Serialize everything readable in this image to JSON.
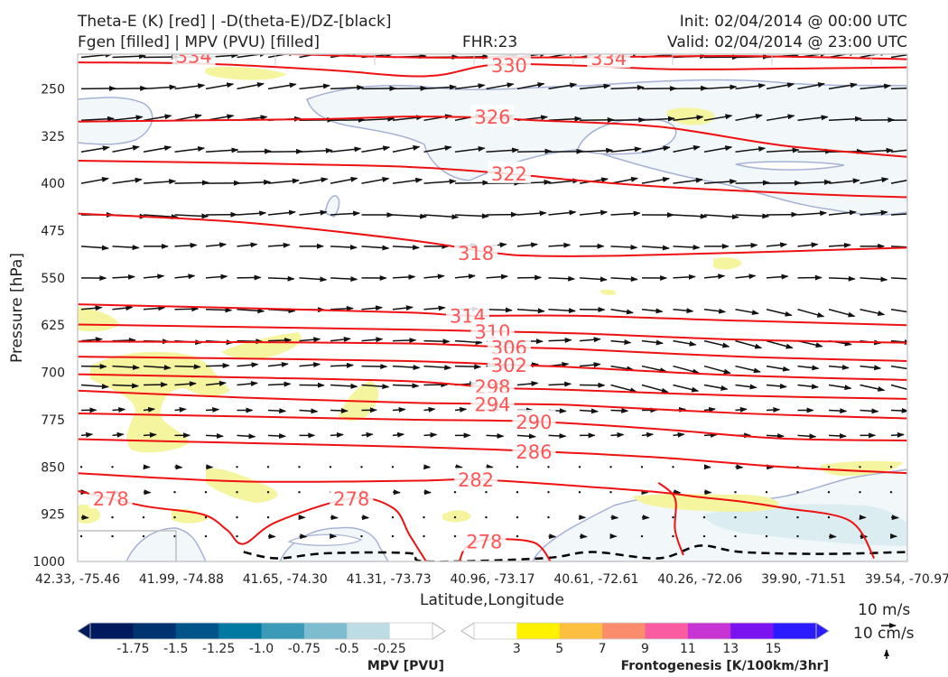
{
  "header": {
    "line1_left": "Theta-E (K) [red] | -D(theta-E)/DZ-[black]",
    "line2_left": "Fgen [filled] | MPV (PVU) [filled]",
    "fhr": "FHR:23",
    "init": "Init: 02/04/2014 @ 00:00 UTC",
    "valid": "Valid: 02/04/2014 @ 23:00 UTC"
  },
  "colors": {
    "theta_e": "#ee1111",
    "theta_e_label": "#ff5555",
    "mpv_light": "#f2f8f9",
    "mpv_edge": "#a6b1d6",
    "fgen_3": "#f5f5a0",
    "black_contour": "#000000"
  },
  "chart_data": {
    "type": "cross-section",
    "xlabel": "Latitude,Longitude",
    "ylabel": "Pressure [hPa]",
    "x_ticks": [
      "42.33, -75.46",
      "41.99, -74.88",
      "41.65, -74.30",
      "41.31, -73.73",
      "40.96, -73.17",
      "40.61, -72.61",
      "40.26, -72.06",
      "39.90, -71.51",
      "39.54, -70.97"
    ],
    "y_ticks": [
      250,
      325,
      400,
      475,
      550,
      625,
      700,
      775,
      850,
      925,
      1000
    ],
    "ylim": [
      1000,
      195
    ],
    "theta_e_contours": [
      {
        "level": 334,
        "points": [
          [
            0,
            190
          ],
          [
            20,
            193
          ],
          [
            40,
            200
          ],
          [
            60,
            200
          ],
          [
            80,
            198
          ],
          [
            100,
            203
          ]
        ],
        "label_at": [
          [
            14,
            197
          ],
          [
            64,
            201
          ]
        ]
      },
      {
        "level": 330,
        "points": [
          [
            0,
            208
          ],
          [
            15,
            210
          ],
          [
            30,
            220
          ],
          [
            42,
            230
          ],
          [
            50,
            212
          ],
          [
            60,
            213
          ],
          [
            72,
            219
          ],
          [
            85,
            218
          ],
          [
            100,
            216
          ]
        ],
        "label_at": [
          [
            52,
            212
          ]
        ]
      },
      {
        "level": 326,
        "points": [
          [
            0,
            302
          ],
          [
            15,
            300
          ],
          [
            30,
            298
          ],
          [
            40,
            294
          ],
          [
            50,
            296
          ],
          [
            55,
            300
          ],
          [
            70,
            310
          ],
          [
            85,
            340
          ],
          [
            100,
            358
          ]
        ],
        "label_at": [
          [
            50,
            294
          ]
        ]
      },
      {
        "level": 322,
        "points": [
          [
            0,
            364
          ],
          [
            20,
            368
          ],
          [
            40,
            374
          ],
          [
            52,
            385
          ],
          [
            60,
            395
          ],
          [
            70,
            405
          ],
          [
            80,
            412
          ],
          [
            90,
            418
          ],
          [
            100,
            422
          ]
        ],
        "label_at": [
          [
            52,
            384
          ]
        ]
      },
      {
        "level": 318,
        "points": [
          [
            0,
            448
          ],
          [
            20,
            462
          ],
          [
            40,
            490
          ],
          [
            50,
            510
          ],
          [
            55,
            515
          ],
          [
            65,
            515
          ],
          [
            80,
            510
          ],
          [
            100,
            502
          ]
        ],
        "label_at": [
          [
            48,
            510
          ]
        ]
      },
      {
        "level": 314,
        "points": [
          [
            0,
            592
          ],
          [
            20,
            598
          ],
          [
            40,
            605
          ],
          [
            47,
            610
          ],
          [
            60,
            610
          ],
          [
            80,
            618
          ],
          [
            100,
            625
          ]
        ],
        "label_at": [
          [
            47,
            610
          ]
        ]
      },
      {
        "level": 310,
        "points": [
          [
            0,
            624
          ],
          [
            20,
            628
          ],
          [
            40,
            632
          ],
          [
            50,
            635
          ],
          [
            60,
            638
          ],
          [
            80,
            648
          ],
          [
            100,
            653
          ]
        ],
        "label_at": [
          [
            50,
            635
          ]
        ]
      },
      {
        "level": 306,
        "points": [
          [
            0,
            651
          ],
          [
            20,
            652
          ],
          [
            40,
            654
          ],
          [
            52,
            660
          ],
          [
            60,
            663
          ],
          [
            80,
            675
          ],
          [
            100,
            682
          ]
        ],
        "label_at": [
          [
            52,
            660
          ]
        ]
      },
      {
        "level": 302,
        "points": [
          [
            0,
            675
          ],
          [
            20,
            678
          ],
          [
            40,
            682
          ],
          [
            52,
            688
          ],
          [
            60,
            692
          ],
          [
            80,
            705
          ],
          [
            100,
            712
          ]
        ],
        "label_at": [
          [
            52,
            688
          ]
        ]
      },
      {
        "level": 298,
        "points": [
          [
            0,
            703
          ],
          [
            20,
            708
          ],
          [
            40,
            714
          ],
          [
            50,
            724
          ],
          [
            60,
            728
          ],
          [
            80,
            737
          ],
          [
            100,
            742
          ]
        ],
        "label_at": [
          [
            50,
            722
          ]
        ]
      },
      {
        "level": 294,
        "points": [
          [
            0,
            729
          ],
          [
            20,
            740
          ],
          [
            40,
            748
          ],
          [
            50,
            750
          ],
          [
            60,
            752
          ],
          [
            80,
            765
          ],
          [
            100,
            773
          ]
        ],
        "label_at": [
          [
            50,
            750
          ]
        ]
      },
      {
        "level": 290,
        "points": [
          [
            0,
            765
          ],
          [
            20,
            770
          ],
          [
            40,
            775
          ],
          [
            55,
            778
          ],
          [
            70,
            790
          ],
          [
            85,
            805
          ],
          [
            100,
            808
          ]
        ],
        "label_at": [
          [
            55,
            778
          ]
        ]
      },
      {
        "level": 286,
        "points": [
          [
            0,
            806
          ],
          [
            20,
            812
          ],
          [
            40,
            818
          ],
          [
            55,
            825
          ],
          [
            70,
            835
          ],
          [
            85,
            850
          ],
          [
            100,
            860
          ]
        ],
        "label_at": [
          [
            55,
            825
          ]
        ]
      },
      {
        "level": 282,
        "points": [
          [
            0,
            860
          ],
          [
            20,
            873
          ],
          [
            40,
            872
          ],
          [
            48,
            870
          ],
          [
            60,
            880
          ],
          [
            70,
            890
          ],
          [
            75,
            898
          ],
          [
            80,
            905
          ],
          [
            85,
            915
          ],
          [
            93,
            935
          ],
          [
            96,
            995
          ]
        ],
        "label_at": [
          [
            48,
            870
          ]
        ]
      },
      {
        "level": 278,
        "points": [
          [
            0,
            888
          ],
          [
            8,
            912
          ],
          [
            15,
            925
          ],
          [
            18,
            950
          ],
          [
            20,
            972
          ],
          [
            24,
            937
          ],
          [
            33,
            900
          ],
          [
            38,
            915
          ],
          [
            40,
            958
          ],
          [
            42,
            1000
          ]
        ],
        "label_at": [
          [
            4,
            900
          ],
          [
            33,
            900
          ]
        ]
      },
      {
        "level": 278,
        "points": [
          [
            46,
            1000
          ],
          [
            47,
            975
          ],
          [
            50,
            965
          ],
          [
            55,
            970
          ],
          [
            57,
            1000
          ]
        ],
        "label_at": [
          [
            49,
            968
          ]
        ]
      },
      {
        "level": 278,
        "points": [
          [
            70,
            875
          ],
          [
            72,
            900
          ],
          [
            72,
            950
          ],
          [
            73,
            990
          ]
        ],
        "label_at": []
      }
    ],
    "mpv_filled_minus_025": "light blue-white regions aloft (250-400 hPa) and near surface (925-1000 hPa)",
    "fgen_filled_3": "light yellow patches near 625-850 hPa on left side and near 880-930 hPa",
    "black_contour_points": [
      [
        20,
        985
      ],
      [
        24,
        995
      ],
      [
        30,
        987
      ],
      [
        40,
        987
      ],
      [
        42,
        1000
      ],
      [
        56,
        995
      ],
      [
        62,
        985
      ],
      [
        70,
        995
      ],
      [
        75,
        975
      ],
      [
        80,
        985
      ],
      [
        90,
        988
      ],
      [
        100,
        985
      ]
    ],
    "wind_key": {
      "h": "10 m/s",
      "v": "10 cm/s"
    }
  },
  "colorbars": {
    "mpv": {
      "title": "MPV [PVU]",
      "colors": [
        "#001a5e",
        "#00336f",
        "#00548a",
        "#00789f",
        "#3a9ab8",
        "#7ebccf",
        "#bddce4",
        "#ffffff"
      ],
      "ticks": [
        "-1.75",
        "-1.5",
        "-1.25",
        "-1.0",
        "-0.75",
        "-0.5",
        "-0.25"
      ]
    },
    "fgen": {
      "title": "Frontogenesis [K/100km/3hr]",
      "colors": [
        "#ffffff",
        "#fff200",
        "#fdbf3f",
        "#fb8c6e",
        "#f95ca0",
        "#c833d4",
        "#7b12f0",
        "#2a1cff"
      ],
      "ticks": [
        "3",
        "5",
        "7",
        "9",
        "11",
        "13",
        "15"
      ]
    }
  }
}
